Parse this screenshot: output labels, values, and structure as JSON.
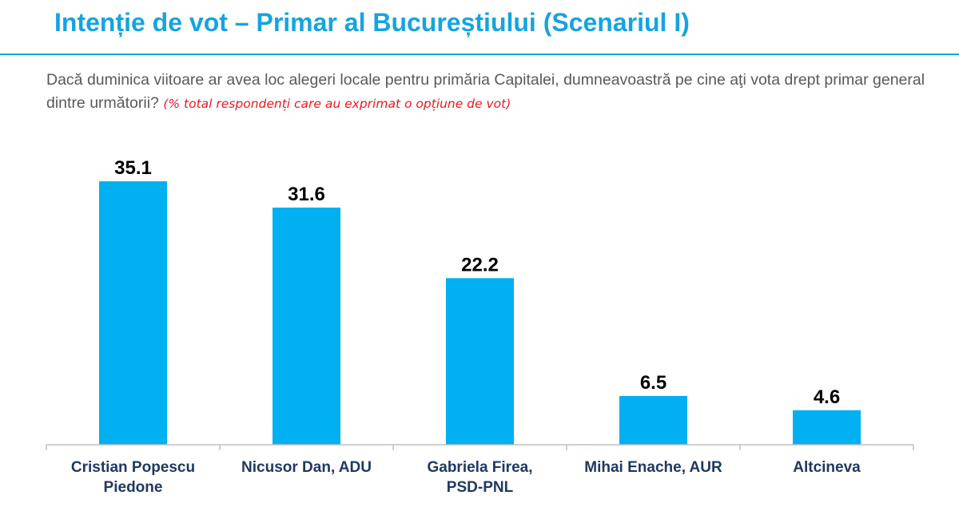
{
  "header": {
    "title": "Intenție de vot – Primar al Bucureștiului (Scenariul I)",
    "question": "Dacă duminica viitoare ar avea loc alegeri locale pentru primăria Capitalei,  dumneavoastră pe cine aţi vota drept primar general dintre următorii?",
    "note": "(% total respondenți care au exprimat o opțiune de vot)"
  },
  "colors": {
    "accent": "#14a4e0",
    "bar": "#00b0f0",
    "note": "#e8191f",
    "category_text": "#1f3864"
  },
  "chart_data": {
    "type": "bar",
    "categories": [
      [
        "Cristian Popescu",
        "Piedone"
      ],
      [
        "Nicusor Dan, ADU"
      ],
      [
        "Gabriela Firea,",
        "PSD-PNL"
      ],
      [
        "Mihai Enache, AUR"
      ],
      [
        "Altcineva"
      ]
    ],
    "values": [
      35.1,
      31.6,
      22.2,
      6.5,
      4.6
    ],
    "ylim": [
      0,
      40
    ],
    "grid": false,
    "legend": "none"
  }
}
